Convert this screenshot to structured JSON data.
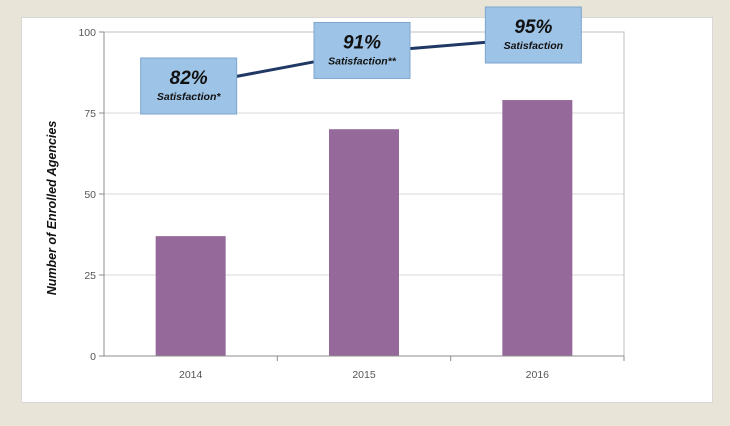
{
  "chart_data": {
    "type": "bar",
    "title": "",
    "xlabel": "",
    "ylabel": "Number of Enrolled Agencies",
    "categories": [
      "2014",
      "2015",
      "2016"
    ],
    "values": [
      37,
      70,
      79
    ],
    "ylim": [
      0,
      100
    ],
    "yticks": [
      0,
      25,
      50,
      75,
      100
    ],
    "grid": true,
    "bar_color": "#956a9a",
    "overlay_line": {
      "type": "line",
      "color": "#1f3864",
      "points": [
        {
          "category": "2014",
          "value": 82,
          "unit": "%",
          "label": "Satisfaction*"
        },
        {
          "category": "2015",
          "value": 91,
          "unit": "%",
          "label": "Satisfaction**"
        },
        {
          "category": "2016",
          "value": 95,
          "unit": "%",
          "label": "Satisfaction"
        }
      ]
    },
    "callouts": [
      {
        "pct": "82%",
        "label": "Satisfaction*"
      },
      {
        "pct": "91%",
        "label": "Satisfaction**"
      },
      {
        "pct": "95%",
        "label": "Satisfaction"
      }
    ],
    "callout_color": "#9dc3e6"
  }
}
